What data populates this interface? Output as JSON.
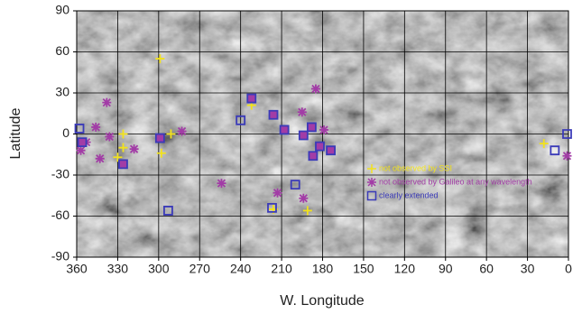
{
  "chart_data": {
    "type": "scatter",
    "x_label": "W. Longitude",
    "y_label": "Latitude",
    "xlim": [
      360,
      0
    ],
    "xticks": [
      360,
      330,
      300,
      270,
      240,
      210,
      180,
      150,
      120,
      90,
      60,
      30,
      0
    ],
    "ylim": [
      -90,
      90
    ],
    "yticks": [
      -90,
      -60,
      -30,
      0,
      30,
      60,
      90
    ],
    "grid": true,
    "legend": "lower right",
    "series": [
      {
        "name": "not observed by SSI",
        "color": "#f2e21c",
        "marker": "plus",
        "x": [
          299,
          291,
          298,
          326,
          326,
          330,
          232,
          216,
          191,
          18
        ],
        "y": [
          55,
          0,
          -14,
          0,
          -10,
          -17,
          21,
          -55,
          -56,
          -7
        ]
      },
      {
        "name": "not observed by Galileo at any wavelength",
        "color": "#a23ca6",
        "marker": "asterisk",
        "x": [
          338,
          357,
          353,
          346,
          343,
          336,
          318,
          283,
          254,
          213,
          195,
          185,
          194,
          179,
          1,
          356,
          326,
          232,
          216,
          208,
          194,
          188,
          187,
          182,
          174,
          299
        ],
        "y": [
          23,
          -12,
          -6,
          5,
          -18,
          -2,
          -11,
          2,
          -36,
          -43,
          16,
          33,
          -47,
          3,
          -16,
          -6,
          -22,
          26,
          14,
          3,
          -1,
          5,
          -16,
          -9,
          -12,
          -3
        ]
      },
      {
        "name": "clearly extended",
        "color": "#3b3bb8",
        "marker": "square",
        "x": [
          358,
          293,
          240,
          217,
          200,
          10,
          1,
          356,
          326,
          232,
          216,
          208,
          194,
          188,
          187,
          182,
          174,
          299
        ],
        "y": [
          4,
          -56,
          10,
          -54,
          -37,
          -12,
          0,
          -6,
          -22,
          26,
          14,
          3,
          -1,
          5,
          -16,
          -9,
          -12,
          -3
        ]
      }
    ]
  }
}
